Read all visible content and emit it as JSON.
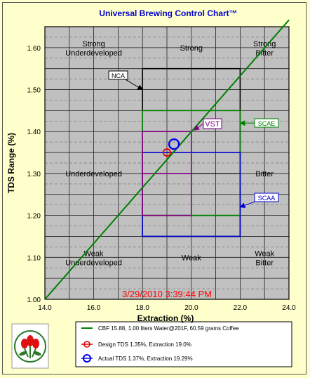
{
  "chart_data": {
    "type": "line",
    "title": "Universal Brewing Control Chart™",
    "xlabel": "Extraction (%)",
    "ylabel": "TDS Range (%)",
    "xlim": [
      14.0,
      24.0
    ],
    "ylim": [
      1.0,
      1.65
    ],
    "xticks": [
      "14.0",
      "16.0",
      "18.0",
      "20.0",
      "22.0",
      "24.0"
    ],
    "yticks": [
      "1.00",
      "1.10",
      "1.20",
      "1.30",
      "1.40",
      "1.50",
      "1.60"
    ],
    "grid": true,
    "timestamp": "3/29/2010 3:39:44 PM",
    "cbf_line": {
      "name": "CBF 15.88,  1.00 liters Water@201F, 60.59 grams Coffee",
      "color": "#008000",
      "x": [
        14.0,
        24.0
      ],
      "y": [
        1.0,
        1.666
      ]
    },
    "regions": [
      {
        "label": "NCA",
        "x": [
          18.0,
          22.0
        ],
        "y": [
          1.15,
          1.55
        ],
        "color": "#000000"
      },
      {
        "label": "SCAE",
        "x": [
          18.0,
          22.0
        ],
        "y": [
          1.2,
          1.45
        ],
        "color": "#008000"
      },
      {
        "label": "SCAA",
        "x": [
          18.0,
          22.0
        ],
        "y": [
          1.15,
          1.35
        ],
        "color": "#0000cc"
      },
      {
        "label": "VST",
        "x": [
          18.0,
          20.0
        ],
        "y": [
          1.2,
          1.4
        ],
        "color": "#800080"
      }
    ],
    "zone_labels": [
      {
        "text": "Strong\nUnderdeveloped",
        "x": 16.0,
        "y": 1.6
      },
      {
        "text": "Strong",
        "x": 20.0,
        "y": 1.6
      },
      {
        "text": "Strong\nBitter",
        "x": 23.0,
        "y": 1.6
      },
      {
        "text": "Underdeveloped",
        "x": 16.0,
        "y": 1.3
      },
      {
        "text": "Bitter",
        "x": 23.0,
        "y": 1.3
      },
      {
        "text": "Weak\nUnderdeveloped",
        "x": 16.0,
        "y": 1.1
      },
      {
        "text": "Weak",
        "x": 20.0,
        "y": 1.1
      },
      {
        "text": "Weak\nBitter",
        "x": 23.0,
        "y": 1.1
      }
    ],
    "points": [
      {
        "name": "Design TDS 1.35%, Extraction  19.0%",
        "x": 19.0,
        "y": 1.35,
        "color": "#e00000"
      },
      {
        "name": "Actual TDS 1.37%, Extraction  19.29%",
        "x": 19.29,
        "y": 1.37,
        "color": "#0000ee"
      }
    ],
    "legend_position": "bottom"
  }
}
